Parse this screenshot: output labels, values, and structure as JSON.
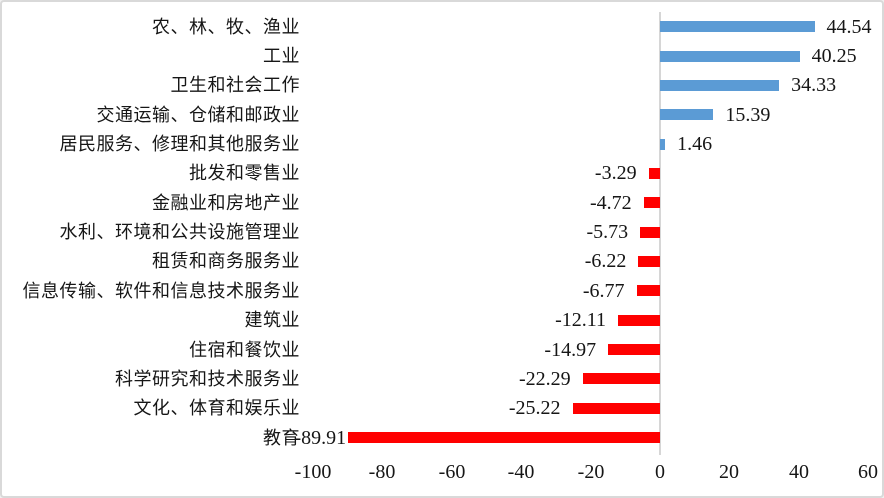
{
  "chart_data": {
    "type": "bar",
    "orientation": "horizontal",
    "title": "",
    "xlabel": "",
    "ylabel": "",
    "categories": [
      "农、林、牧、渔业",
      "工业",
      "卫生和社会工作",
      "交通运输、仓储和邮政业",
      "居民服务、修理和其他服务业",
      "批发和零售业",
      "金融业和房地产业",
      "水利、环境和公共设施管理业",
      "租赁和商务服务业",
      "信息传输、软件和信息技术服务业",
      "建筑业",
      "住宿和餐饮业",
      "科学研究和技术服务业",
      "文化、体育和娱乐业",
      "教育"
    ],
    "values": [
      44.54,
      40.25,
      34.33,
      15.39,
      1.46,
      -3.29,
      -4.72,
      -5.73,
      -6.22,
      -6.77,
      -12.11,
      -14.97,
      -22.29,
      -25.22,
      -89.91
    ],
    "data_labels": [
      "44.54",
      "40.25",
      "34.33",
      "15.39",
      "1.46",
      "-3.29",
      "-4.72",
      "-5.73",
      "-6.22",
      "-6.77",
      "-12.11",
      "-14.97",
      "-22.29",
      "-25.22",
      "-89.91"
    ],
    "x_ticks": [
      -100,
      -80,
      -60,
      -40,
      -20,
      0,
      20,
      40,
      60
    ],
    "xlim": [
      -100,
      60
    ],
    "grid": "off",
    "legend_position": "none",
    "colors": {
      "positive_bar": "#5B9BD5",
      "negative_bar": "#FF0000",
      "axis_line": "#D6D6D6",
      "text": "#161616",
      "border": "#D9D9D9"
    }
  }
}
